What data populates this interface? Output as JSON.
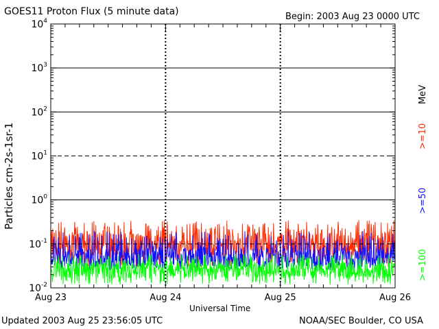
{
  "header": {
    "title": "GOES11 Proton Flux (5 minute data)",
    "begin": "Begin: 2003 Aug 23 0000 UTC"
  },
  "footer": {
    "updated": "Updated 2003 Aug 25 23:56:05 UTC",
    "credit": "NOAA/SEC Boulder, CO USA"
  },
  "chart_data": {
    "type": "line",
    "title": "GOES11 Proton Flux (5 minute data)",
    "xlabel": "Universal Time",
    "ylabel": "Particles cm-2s-1sr-1",
    "y_scale": "log",
    "ylim": [
      0.01,
      10000
    ],
    "x_ticks": [
      "Aug 23",
      "Aug 24",
      "Aug 25",
      "Aug 26"
    ],
    "xlim": [
      "2003-08-23 00:00",
      "2003-08-26 00:00"
    ],
    "y_ticks": [
      {
        "base": "10",
        "exp": "-2",
        "value": 0.01
      },
      {
        "base": "10",
        "exp": "-1",
        "value": 0.1
      },
      {
        "base": "10",
        "exp": "0",
        "value": 1
      },
      {
        "base": "10",
        "exp": "1",
        "value": 10
      },
      {
        "base": "10",
        "exp": "2",
        "value": 100
      },
      {
        "base": "10",
        "exp": "3",
        "value": 1000
      },
      {
        "base": "10",
        "exp": "4",
        "value": 10000
      }
    ],
    "unit_label": "MeV",
    "series": [
      {
        "name": ">=10",
        "color": "#ff2a00",
        "typical": 0.1,
        "range": [
          0.03,
          0.35
        ]
      },
      {
        "name": ">=50",
        "color": "#1010ff",
        "typical": 0.05,
        "range": [
          0.025,
          0.2
        ]
      },
      {
        "name": ">=100",
        "color": "#00ff00",
        "typical": 0.025,
        "range": [
          0.012,
          0.06
        ]
      }
    ],
    "grid_lines": {
      "solid": [
        1,
        100,
        1000
      ],
      "dashed": [
        10,
        0.1
      ]
    }
  }
}
